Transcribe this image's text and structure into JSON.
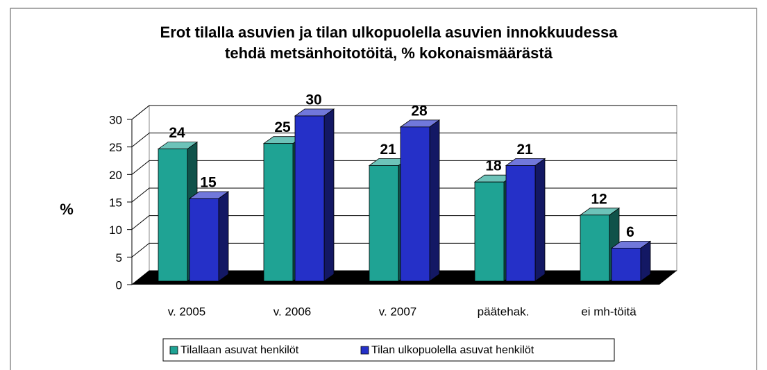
{
  "chart_data": {
    "type": "bar3d",
    "title": [
      "Erot tilalla asuvien ja tilan ulkopuolella asuvien innokkuudessa",
      "tehdä metsänhoitotöitä, % kokonaismäärästä"
    ],
    "y_label": "%",
    "categories": [
      "v. 2005",
      "v. 2006",
      "v. 2007",
      "päätehak.",
      "ei mh-töitä"
    ],
    "series": [
      {
        "name": "Tilallaan asuvat henkilöt",
        "color": "#1fa394",
        "values": [
          24,
          25,
          21,
          18,
          12
        ]
      },
      {
        "name": "Tilan ulkopuolella asuvat henkilöt",
        "color": "#2530c8",
        "values": [
          15,
          30,
          28,
          21,
          6
        ]
      }
    ],
    "ylim": [
      0,
      30
    ],
    "yticks": [
      0,
      5,
      10,
      15,
      20,
      25,
      30
    ],
    "grid": true,
    "legend": "bottom"
  }
}
